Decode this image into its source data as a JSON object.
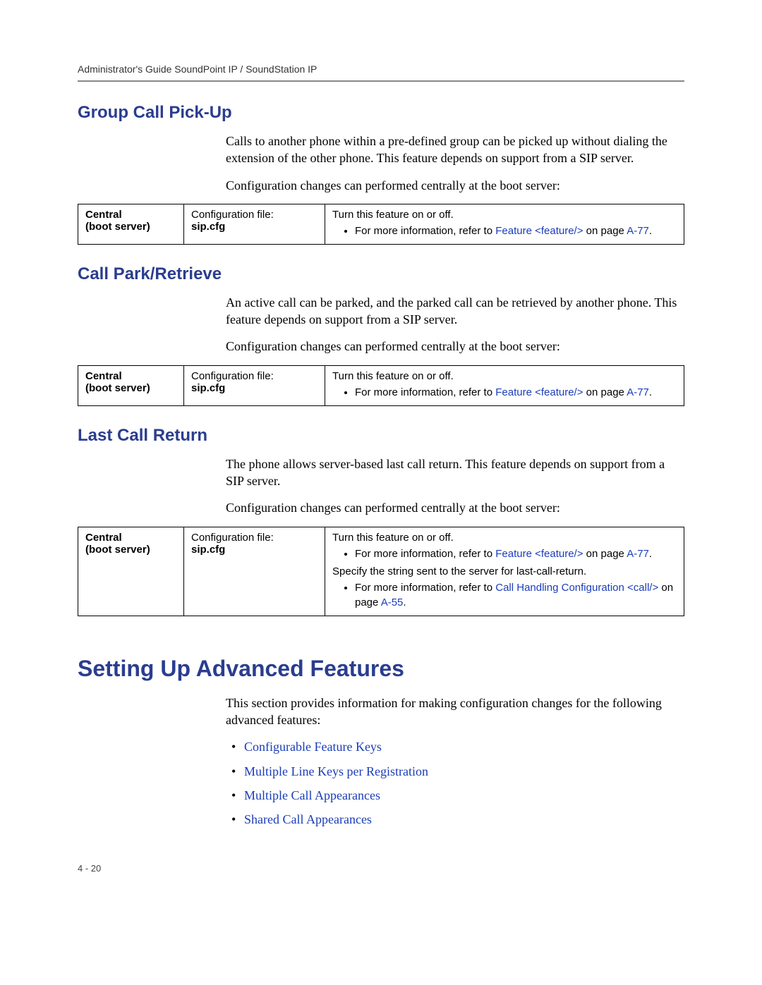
{
  "colors": {
    "heading": "#2a3d8f",
    "link": "#1a3db8",
    "rule": "#888888",
    "text": "#000000",
    "background": "#ffffff"
  },
  "header": {
    "running": "Administrator's Guide SoundPoint IP / SoundStation IP"
  },
  "footer": {
    "pagenum": "4 - 20"
  },
  "sections": {
    "group_call_pickup": {
      "title": "Group Call Pick-Up",
      "para1": "Calls to another phone within a pre-defined group can be picked up without dialing the extension of the other phone. This feature depends on support from a SIP server.",
      "para2": "Configuration changes can performed centrally at the boot server:"
    },
    "call_park": {
      "title": "Call Park/Retrieve",
      "para1": "An active call can be parked, and the parked call can be retrieved by another phone. This feature depends on support from a SIP server.",
      "para2": "Configuration changes can performed centrally at the boot server:"
    },
    "last_call": {
      "title": "Last Call Return",
      "para1": "The phone allows server-based last call return. This feature depends on support from a SIP server.",
      "para2": "Configuration changes can performed centrally at the boot server:"
    },
    "advanced": {
      "title": "Setting Up Advanced Features",
      "para1": "This section provides information for making configuration changes for the following advanced features:",
      "bullets": {
        "b1": "Configurable Feature Keys",
        "b2": "Multiple Line Keys per Registration",
        "b3": "Multiple Call Appearances",
        "b4": "Shared Call Appearances"
      }
    }
  },
  "table_common": {
    "col1_line1": "Central",
    "col1_line2": "(boot server)",
    "col2_line1": "Configuration file:",
    "col2_line2": "sip.cfg",
    "col3_heading": "Turn this feature on or off.",
    "bullet_prefix": "For more information, refer to ",
    "feature_link": "Feature <feature/>",
    "on_page": " on page ",
    "pageref": "A-77",
    "period": "."
  },
  "table_lastcall": {
    "extra_heading": "Specify the string sent to the server for last-call-return.",
    "bullet2_prefix": "For more information, refer to ",
    "bullet2_link": "Call Handling Configuration <call/>",
    "bullet2_onpage": "on page ",
    "bullet2_pageref": "A-55",
    "bullet2_period": "."
  }
}
